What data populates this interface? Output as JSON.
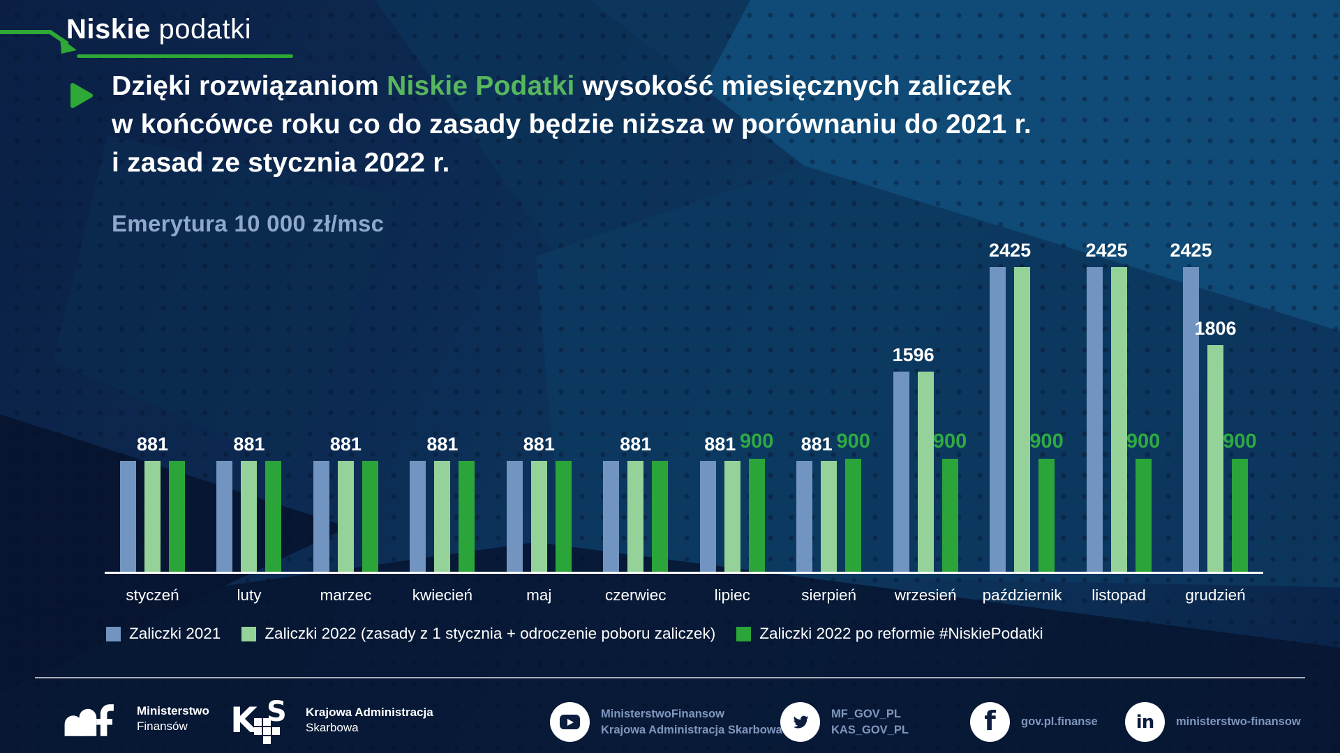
{
  "colors": {
    "accent_green": "#2ea836",
    "highlight_green": "#57b65e",
    "green_label": "#2eab43",
    "subtitle_blue": "#8EA9CB",
    "social_text": "#8097BE"
  },
  "logo": {
    "bold": "Niskie",
    "light": "podatki"
  },
  "headline": {
    "line1_prefix": "Dzięki rozwiązaniom ",
    "line1_highlight": "Niskie Podatki",
    "line1_suffix": " wysokość miesięcznych zaliczek",
    "line2": "w końcówce roku co do zasady będzie niższa w porównaniu do 2021 r.",
    "line3": "i zasad ze stycznia 2022 r."
  },
  "subtitle": "Emerytura 10 000 zł/msc",
  "chart_data": {
    "type": "bar",
    "title": "Emerytura 10 000 zł/msc",
    "xlabel": "",
    "ylabel": "",
    "ylim": [
      0,
      2600
    ],
    "grid": false,
    "legend_position": "bottom",
    "categories": [
      "styczeń",
      "luty",
      "marzec",
      "kwiecień",
      "maj",
      "czerwiec",
      "lipiec",
      "sierpień",
      "wrzesień",
      "październik",
      "listopad",
      "grudzień"
    ],
    "series": [
      {
        "name": "Zaliczki 2021",
        "color": "#7294c0",
        "values": [
          881,
          881,
          881,
          881,
          881,
          881,
          881,
          881,
          1596,
          2425,
          2425,
          2425
        ]
      },
      {
        "name": "Zaliczki 2022 (zasady z 1 stycznia + odroczenie poboru zaliczek)",
        "color": "#95d29a",
        "values": [
          881,
          881,
          881,
          881,
          881,
          881,
          881,
          881,
          1596,
          2425,
          2425,
          1806
        ]
      },
      {
        "name": "Zaliczki 2022 po reformie #NiskiePodatki",
        "color": "#2ba539",
        "values": [
          881,
          881,
          881,
          881,
          881,
          881,
          900,
          900,
          900,
          900,
          900,
          900
        ]
      }
    ],
    "value_labels": [
      [
        {
          "text": "881",
          "over": [
            1
          ],
          "style": "white"
        }
      ],
      [
        {
          "text": "881",
          "over": [
            1
          ],
          "style": "white"
        }
      ],
      [
        {
          "text": "881",
          "over": [
            1
          ],
          "style": "white"
        }
      ],
      [
        {
          "text": "881",
          "over": [
            1
          ],
          "style": "white"
        }
      ],
      [
        {
          "text": "881",
          "over": [
            1
          ],
          "style": "white"
        }
      ],
      [
        {
          "text": "881",
          "over": [
            1
          ],
          "style": "white"
        }
      ],
      [
        {
          "text": "881",
          "over": [
            0,
            1
          ],
          "style": "white"
        },
        {
          "text": "900",
          "over": [
            2
          ],
          "style": "green"
        }
      ],
      [
        {
          "text": "881",
          "over": [
            0,
            1
          ],
          "style": "white"
        },
        {
          "text": "900",
          "over": [
            2
          ],
          "style": "green"
        }
      ],
      [
        {
          "text": "1596",
          "over": [
            0,
            1
          ],
          "style": "white"
        },
        {
          "text": "900",
          "over": [
            2
          ],
          "style": "green"
        }
      ],
      [
        {
          "text": "2425",
          "over": [
            0,
            1
          ],
          "style": "white"
        },
        {
          "text": "900",
          "over": [
            2
          ],
          "style": "green"
        }
      ],
      [
        {
          "text": "2425",
          "over": [
            0,
            1
          ],
          "style": "white"
        },
        {
          "text": "900",
          "over": [
            2
          ],
          "style": "green"
        }
      ],
      [
        {
          "text": "2425",
          "over": [
            0
          ],
          "style": "white"
        },
        {
          "text": "1806",
          "over": [
            1
          ],
          "style": "white"
        },
        {
          "text": "900",
          "over": [
            2
          ],
          "style": "green"
        }
      ]
    ]
  },
  "footer": {
    "mf": {
      "line1": "Ministerstwo",
      "line2": "Finansów"
    },
    "kas": {
      "line1": "Krajowa Administracja",
      "line2": "Skarbowa"
    },
    "youtube": {
      "line1": "MinisterstwoFinansow",
      "line2": "Krajowa Administracja Skarbowa"
    },
    "twitter": {
      "line1": "MF_GOV_PL",
      "line2": "KAS_GOV_PL"
    },
    "facebook": {
      "line1": "gov.pl.finanse"
    },
    "linkedin": {
      "line1": "ministerstwo-finansow"
    }
  }
}
